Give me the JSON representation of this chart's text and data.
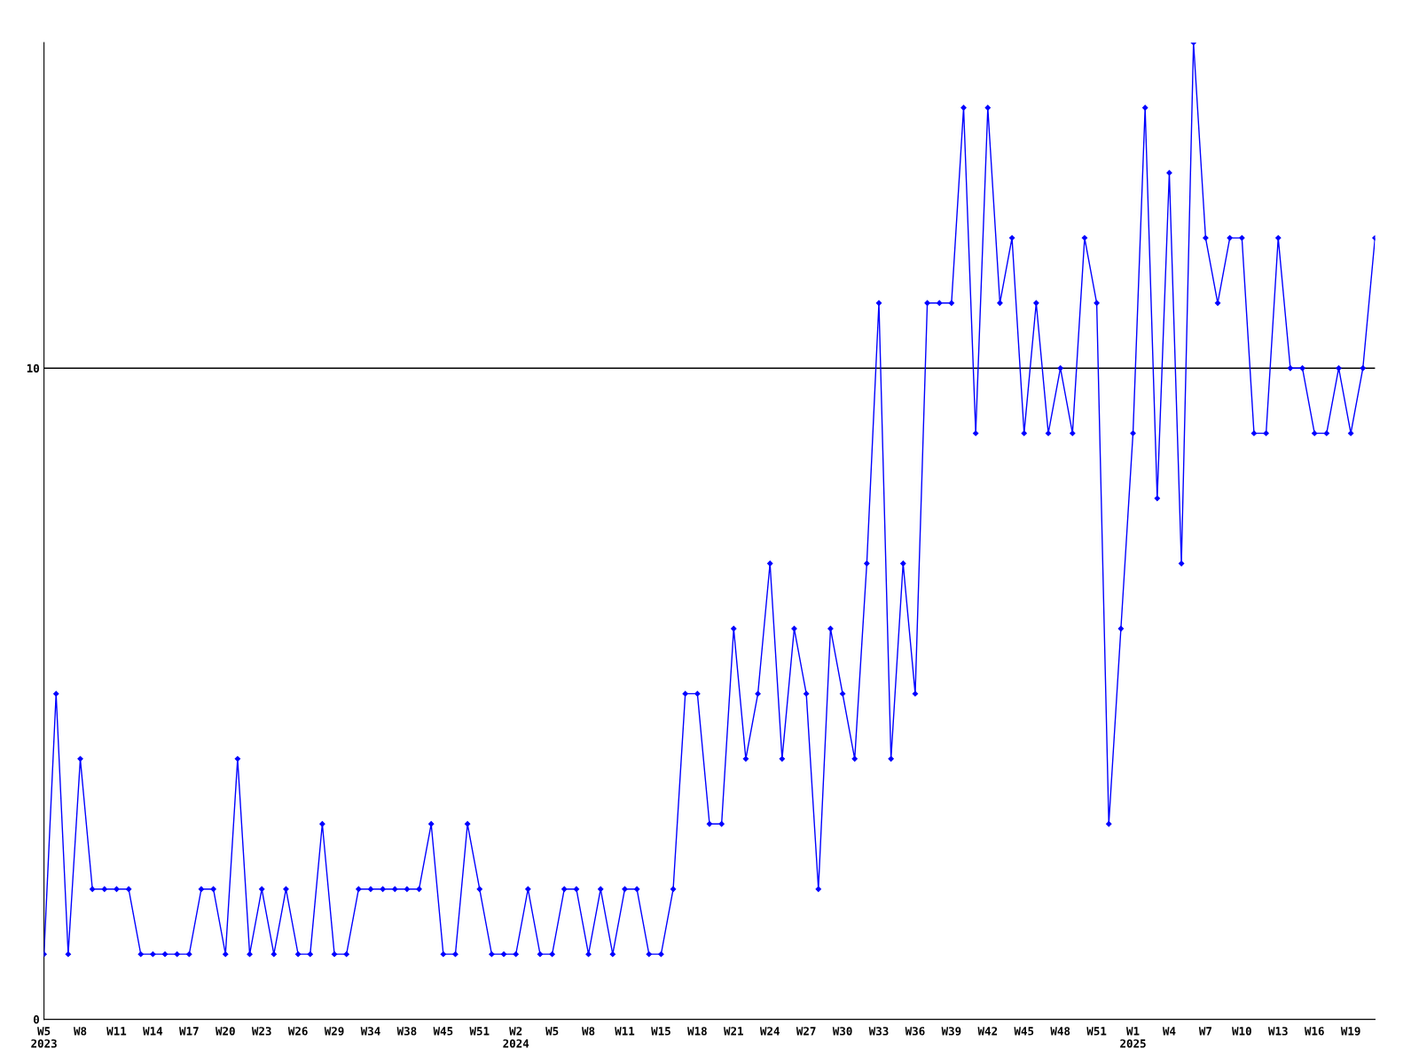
{
  "chart_data": {
    "type": "line",
    "categories": [
      "W5\n2023",
      null,
      null,
      "W8",
      null,
      null,
      "W11",
      null,
      null,
      "W14",
      null,
      null,
      "W17",
      null,
      null,
      "W20",
      null,
      null,
      "W23",
      null,
      null,
      "W26",
      null,
      null,
      "W29",
      null,
      null,
      "W34",
      null,
      null,
      "W38",
      null,
      null,
      "W45",
      null,
      null,
      "W51",
      null,
      null,
      "W2\n2024",
      null,
      null,
      "W5",
      null,
      null,
      "W8",
      null,
      null,
      "W11",
      null,
      null,
      "W15",
      null,
      null,
      "W18",
      null,
      null,
      "W21",
      null,
      null,
      "W24",
      null,
      null,
      "W27",
      null,
      null,
      "W30",
      null,
      null,
      "W33",
      null,
      null,
      "W36",
      null,
      null,
      "W39",
      null,
      null,
      "W42",
      null,
      null,
      "W45",
      null,
      null,
      "W48",
      null,
      null,
      "W51",
      null,
      null,
      "W1\n2025",
      null,
      null,
      "W4",
      null,
      null,
      "W7",
      null,
      null,
      "W10",
      null,
      null,
      "W13",
      null,
      null,
      "W16",
      null,
      null,
      "W19",
      null,
      null
    ],
    "series": [
      {
        "color": "#0000ff",
        "values": [
          1,
          5,
          1,
          4,
          2,
          2,
          2,
          2,
          1,
          1,
          1,
          1,
          1,
          2,
          2,
          1,
          4,
          1,
          2,
          1,
          2,
          1,
          1,
          3,
          1,
          1,
          2,
          2,
          2,
          2,
          2,
          2,
          3,
          1,
          1,
          3,
          2,
          1,
          1,
          1,
          2,
          1,
          1,
          2,
          2,
          1,
          2,
          1,
          2,
          2,
          1,
          1,
          2,
          5,
          5,
          3,
          3,
          6,
          4,
          5,
          7,
          4,
          6,
          5,
          2,
          6,
          5,
          4,
          7,
          11,
          4,
          7,
          5,
          11,
          11,
          11,
          14,
          9,
          14,
          11,
          12,
          9,
          11,
          9,
          10,
          9,
          12,
          11,
          3,
          6,
          9,
          14,
          8,
          13,
          7,
          15,
          12,
          11,
          12,
          12,
          9,
          9,
          12,
          10,
          10,
          9,
          9,
          10,
          9,
          10,
          12
        ]
      }
    ],
    "ylim": [
      0,
      15
    ],
    "yticks": [
      0,
      10
    ],
    "grid": "y",
    "marker": "diamond",
    "line_style": "solid"
  }
}
